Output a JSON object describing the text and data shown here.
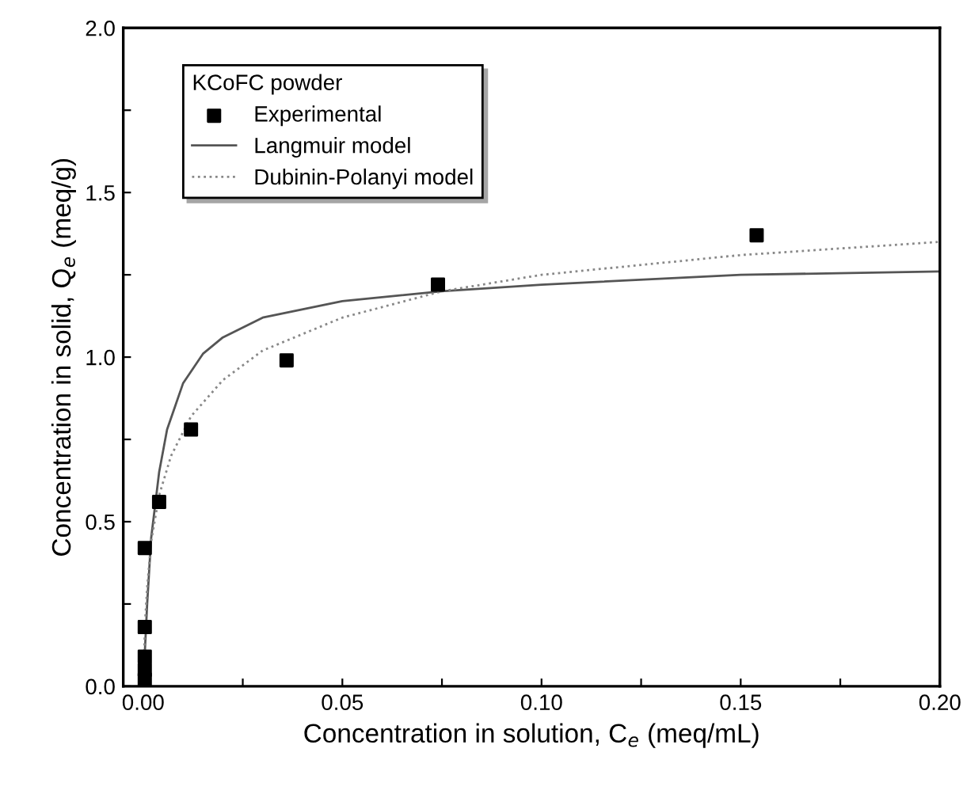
{
  "chart_data": {
    "type": "scatter",
    "xlabel": "Concentration in solution, C$_{e}$ (meq/mL)",
    "ylabel": "Concentration in solid, Q$_{e}$ (meq/g)",
    "legend_title": "KCoFC powder",
    "xlim": [
      -0.005,
      0.2
    ],
    "ylim": [
      0,
      2.0
    ],
    "xticks": [
      {
        "value": 0,
        "label": "0.00"
      },
      {
        "value": 0.025,
        "label": null
      },
      0.05,
      {
        "value": 0.075,
        "label": null
      },
      {
        "value": 0.1,
        "label": "0.10"
      },
      {
        "value": 0.125,
        "label": null
      },
      0.15,
      {
        "value": 0.175,
        "label": null
      },
      {
        "value": 0.2,
        "label": "0.20"
      }
    ],
    "yticks": [
      {
        "value": 0,
        "label": "0.0"
      },
      {
        "value": 0.25,
        "label": null
      },
      0.5,
      {
        "value": 0.75,
        "label": null
      },
      {
        "value": 1.0,
        "label": "1.0"
      },
      {
        "value": 1.25,
        "label": null
      },
      1.5,
      {
        "value": 1.75,
        "label": null
      },
      {
        "value": 2.0,
        "label": "2.0"
      }
    ],
    "legend": "top left",
    "grid": false,
    "series": [
      {
        "name": "Experimental",
        "marker": "square",
        "color": "#000000",
        "x": [
          0.0004,
          0.0004,
          0.0004,
          0.0004,
          0.0004,
          0.004,
          0.012,
          0.036,
          0.074,
          0.154
        ],
        "values": [
          0.02,
          0.05,
          0.09,
          0.18,
          0.42,
          0.56,
          0.78,
          0.99,
          1.22,
          1.37
        ]
      },
      {
        "name": "Langmuir model",
        "type": "line",
        "line_style": "solid",
        "color": "#555555",
        "x": [
          0,
          0.001,
          0.002,
          0.004,
          0.006,
          0.008,
          0.01,
          0.015,
          0.02,
          0.03,
          0.05,
          0.075,
          0.1,
          0.15,
          0.2
        ],
        "values": [
          0,
          0.25,
          0.45,
          0.65,
          0.78,
          0.85,
          0.92,
          1.01,
          1.06,
          1.12,
          1.17,
          1.2,
          1.22,
          1.25,
          1.26
        ]
      },
      {
        "name": "Dubinin-Polanyi model",
        "type": "line",
        "line_style": "dotted",
        "color": "#888888",
        "x": [
          0,
          0.0005,
          0.001,
          0.002,
          0.004,
          0.007,
          0.012,
          0.02,
          0.03,
          0.05,
          0.075,
          0.1,
          0.15,
          0.2
        ],
        "values": [
          0,
          0.2,
          0.3,
          0.44,
          0.58,
          0.7,
          0.82,
          0.93,
          1.02,
          1.12,
          1.2,
          1.25,
          1.31,
          1.35
        ]
      }
    ]
  }
}
